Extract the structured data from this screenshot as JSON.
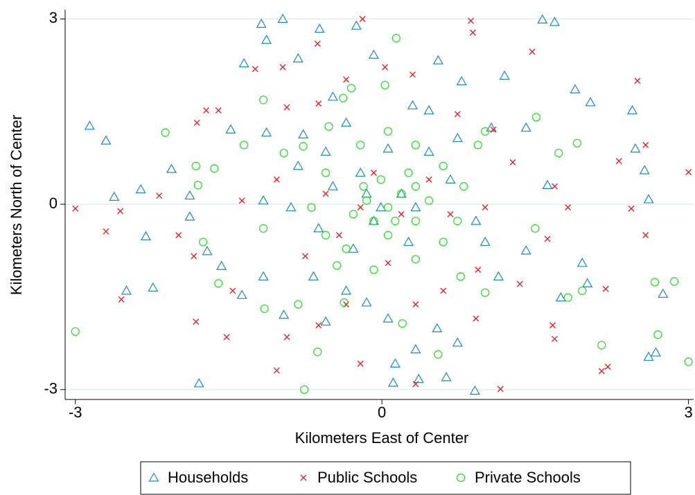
{
  "chart_data": {
    "type": "scatter",
    "x_label": "Kilometers East of Center",
    "y_label": "Kilometers North of Center",
    "xlim": [
      -3.1,
      3.05
    ],
    "ylim": [
      -3.16,
      3.15
    ],
    "xticks": [
      -3,
      0,
      3
    ],
    "yticks": [
      -3,
      0,
      3
    ],
    "grid": true,
    "legend": "bottom",
    "series": [
      {
        "name": "Households",
        "color": "#1a8cb0",
        "marker": "triangle",
        "x": [
          -2.86,
          -2.7,
          -2.62,
          -2.36,
          -2.31,
          -2.5,
          -2.24,
          -1.79,
          -1.18,
          -0.97,
          -1.35,
          -1.13,
          -0.61,
          -0.25,
          1.57,
          1.69,
          0.55,
          1.2,
          2.45,
          2.48,
          2.57,
          2.61,
          2.75,
          2.61,
          2.68,
          1.89,
          2.04,
          1.96,
          2.01,
          1.62,
          1.41,
          1.07,
          0.78,
          0.3,
          -0.35,
          -0.77,
          -1.13,
          -1.48,
          -2.06,
          -1.88,
          -1.88,
          -1.71,
          -1.57,
          -1.37,
          -1.16,
          -0.96,
          -0.67,
          -0.55,
          -0.35,
          -0.15,
          0.06,
          0.13,
          0.36,
          0.33,
          0.54,
          0.74,
          0.91,
          0.63,
          0.11,
          1.14,
          1.41,
          1.75,
          1.01,
          0.92,
          0.67,
          0.46,
          0.06,
          -0.21,
          -0.48,
          -0.62,
          -0.28,
          0.26,
          -0.01,
          -0.15,
          0.19,
          -0.08,
          0.33,
          -0.89,
          -1.16,
          -0.82,
          -0.55,
          0.74,
          0.46,
          -0.48,
          -0.08,
          -0.82
        ],
        "values": [
          1.27,
          1.03,
          0.12,
          0.24,
          -0.52,
          -1.4,
          -1.35,
          -2.9,
          2.92,
          3.0,
          2.28,
          2.66,
          2.84,
          2.89,
          2.99,
          2.95,
          2.33,
          2.08,
          1.52,
          0.9,
          0.55,
          0.08,
          -1.45,
          -2.47,
          -2.4,
          1.86,
          1.65,
          -0.95,
          -1.28,
          0.31,
          1.24,
          1.24,
          1.99,
          1.6,
          1.32,
          1.13,
          1.16,
          1.21,
          0.57,
          0.14,
          -0.2,
          -0.76,
          -1.0,
          -1.47,
          -1.17,
          -1.79,
          -1.17,
          -1.9,
          -1.4,
          -1.59,
          -1.85,
          -2.58,
          -2.83,
          -2.35,
          -2.01,
          -2.24,
          -3.02,
          -2.8,
          -2.89,
          -1.17,
          -0.75,
          -1.51,
          -0.61,
          -0.27,
          0.4,
          0.85,
          0.9,
          0.51,
          0.29,
          -0.39,
          -0.72,
          -0.61,
          -0.05,
          0.17,
          0.17,
          -0.27,
          -0.05,
          -0.05,
          0.06,
          0.62,
          0.85,
          1.07,
          1.52,
          1.74,
          2.42,
          2.36
        ]
      },
      {
        "name": "Public Schools",
        "color": "#e8202a",
        "marker": "x",
        "x": [
          -3.0,
          -2.7,
          -2.55,
          -2.56,
          -2.18,
          -1.81,
          -1.72,
          -1.6,
          -1.24,
          -0.97,
          -0.63,
          -0.19,
          0.87,
          0.89,
          1.47,
          2.5,
          2.58,
          2.32,
          3.0,
          2.44,
          2.58,
          2.19,
          2.21,
          2.15,
          1.16,
          1.69,
          1.67,
          0.92,
          0.33,
          -0.21,
          -1.03,
          -0.93,
          -1.82,
          -1.52,
          -1.46,
          -1.84,
          -1.99,
          -1.37,
          -1.03,
          -0.93,
          -0.62,
          -0.35,
          0.03,
          0.3,
          0.74,
          1.09,
          1.28,
          1.69,
          1.82,
          1.62,
          1.35,
          0.94,
          0.6,
          0.33,
          0.06,
          -0.35,
          -0.62,
          -0.42,
          -0.75,
          -0.21,
          0.19,
          0.46,
          -0.08,
          -0.55,
          0.67,
          1.01
        ],
        "values": [
          -0.07,
          -0.44,
          -1.54,
          -0.11,
          0.14,
          1.32,
          1.52,
          1.52,
          2.19,
          2.22,
          2.6,
          3.0,
          2.97,
          2.78,
          2.47,
          2.0,
          0.96,
          0.7,
          0.52,
          -0.07,
          -0.5,
          -1.37,
          -2.63,
          -2.7,
          -2.99,
          -2.18,
          -1.96,
          -1.85,
          -2.91,
          -2.58,
          -2.69,
          -2.15,
          -1.9,
          -2.15,
          -1.4,
          -0.84,
          -0.5,
          0.06,
          0.4,
          1.57,
          1.63,
          2.02,
          2.22,
          2.1,
          1.46,
          1.21,
          0.68,
          0.29,
          -0.05,
          -0.56,
          -1.29,
          -1.06,
          -1.4,
          -1.62,
          -0.95,
          -1.62,
          -1.96,
          -0.5,
          -0.84,
          -0.05,
          -0.16,
          0.4,
          0.51,
          0.17,
          -0.16,
          -0.05
        ]
      },
      {
        "name": "Private Schools",
        "color": "#33dd33",
        "marker": "circle",
        "x": [
          -3.0,
          -2.12,
          -1.82,
          -1.8,
          -1.64,
          -1.16,
          -1.35,
          -1.16,
          -1.75,
          -1.6,
          -1.15,
          -0.82,
          -0.63,
          -0.76,
          0.14,
          0.03,
          -0.3,
          -0.38,
          -0.52,
          -0.96,
          -0.77,
          1.51,
          1.91,
          1.73,
          1.5,
          1.82,
          1.96,
          2.15,
          2.67,
          2.86,
          2.7,
          3.0,
          1.01,
          0.77,
          0.55,
          0.2,
          -0.37,
          -0.44,
          -0.08,
          0.33,
          0.6,
          0.74,
          0.8,
          0.6,
          0.94,
          1.01,
          0.33,
          0.06,
          -0.21,
          -0.55,
          -0.69,
          -0.55,
          -0.35,
          0.06,
          0.33,
          0.46,
          0.26,
          -0.01,
          -0.15,
          -0.28,
          0.06,
          0.19,
          -0.08,
          0.13,
          -0.18,
          0.33
        ],
        "values": [
          -2.06,
          1.16,
          0.62,
          0.31,
          0.58,
          1.69,
          0.96,
          -0.39,
          -0.61,
          -1.28,
          -1.69,
          -1.62,
          -2.39,
          -3.0,
          2.69,
          1.93,
          1.88,
          1.72,
          1.26,
          0.83,
          0.94,
          1.41,
          0.99,
          0.83,
          -0.39,
          -1.51,
          -1.4,
          -2.28,
          -1.26,
          -1.25,
          -2.11,
          -2.55,
          -1.43,
          -1.17,
          -2.43,
          -1.93,
          -1.59,
          -0.99,
          -1.06,
          -0.89,
          -0.61,
          -0.27,
          0.29,
          0.62,
          0.96,
          1.18,
          0.96,
          1.18,
          0.96,
          0.51,
          -0.05,
          -0.5,
          -0.72,
          -0.5,
          -0.27,
          0.06,
          0.51,
          0.4,
          0.06,
          -0.16,
          -0.05,
          0.17,
          -0.27,
          -0.27,
          0.29,
          0.29
        ]
      }
    ]
  }
}
